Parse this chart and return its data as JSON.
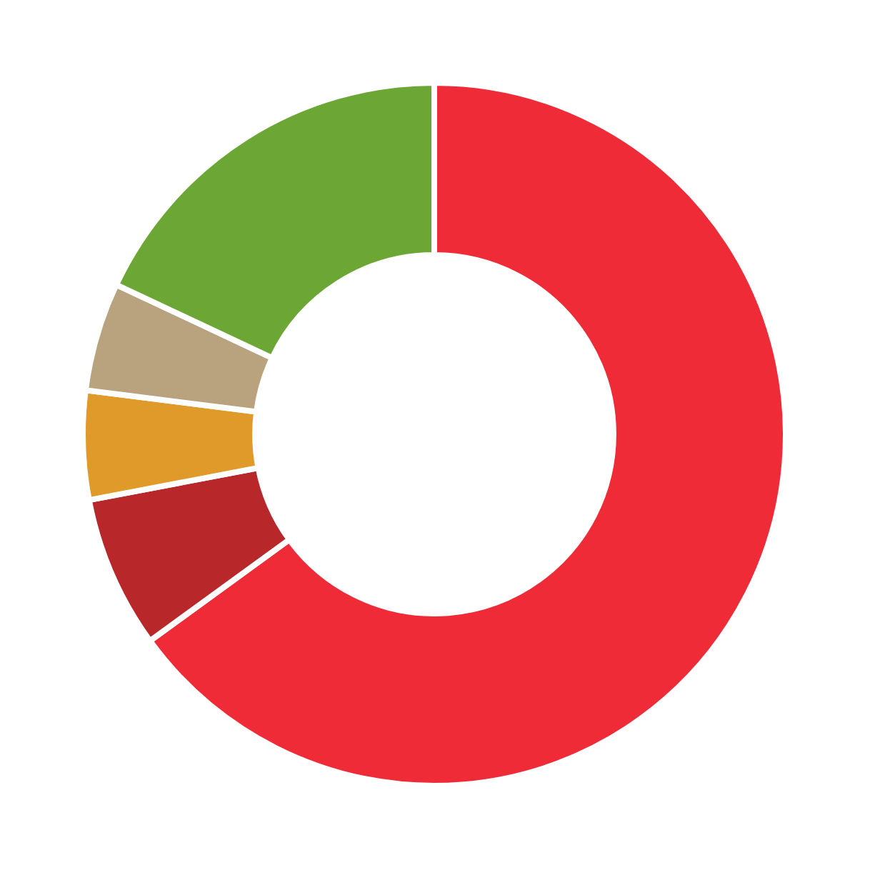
{
  "chart_data": {
    "type": "donut",
    "categories": [
      null,
      null,
      null,
      null,
      null
    ],
    "values": [
      65,
      7,
      5,
      5,
      18
    ],
    "colors": [
      "#ee2b37",
      "#b8282b",
      "#e09a2a",
      "#b9a27e",
      "#6ca735"
    ]
  }
}
